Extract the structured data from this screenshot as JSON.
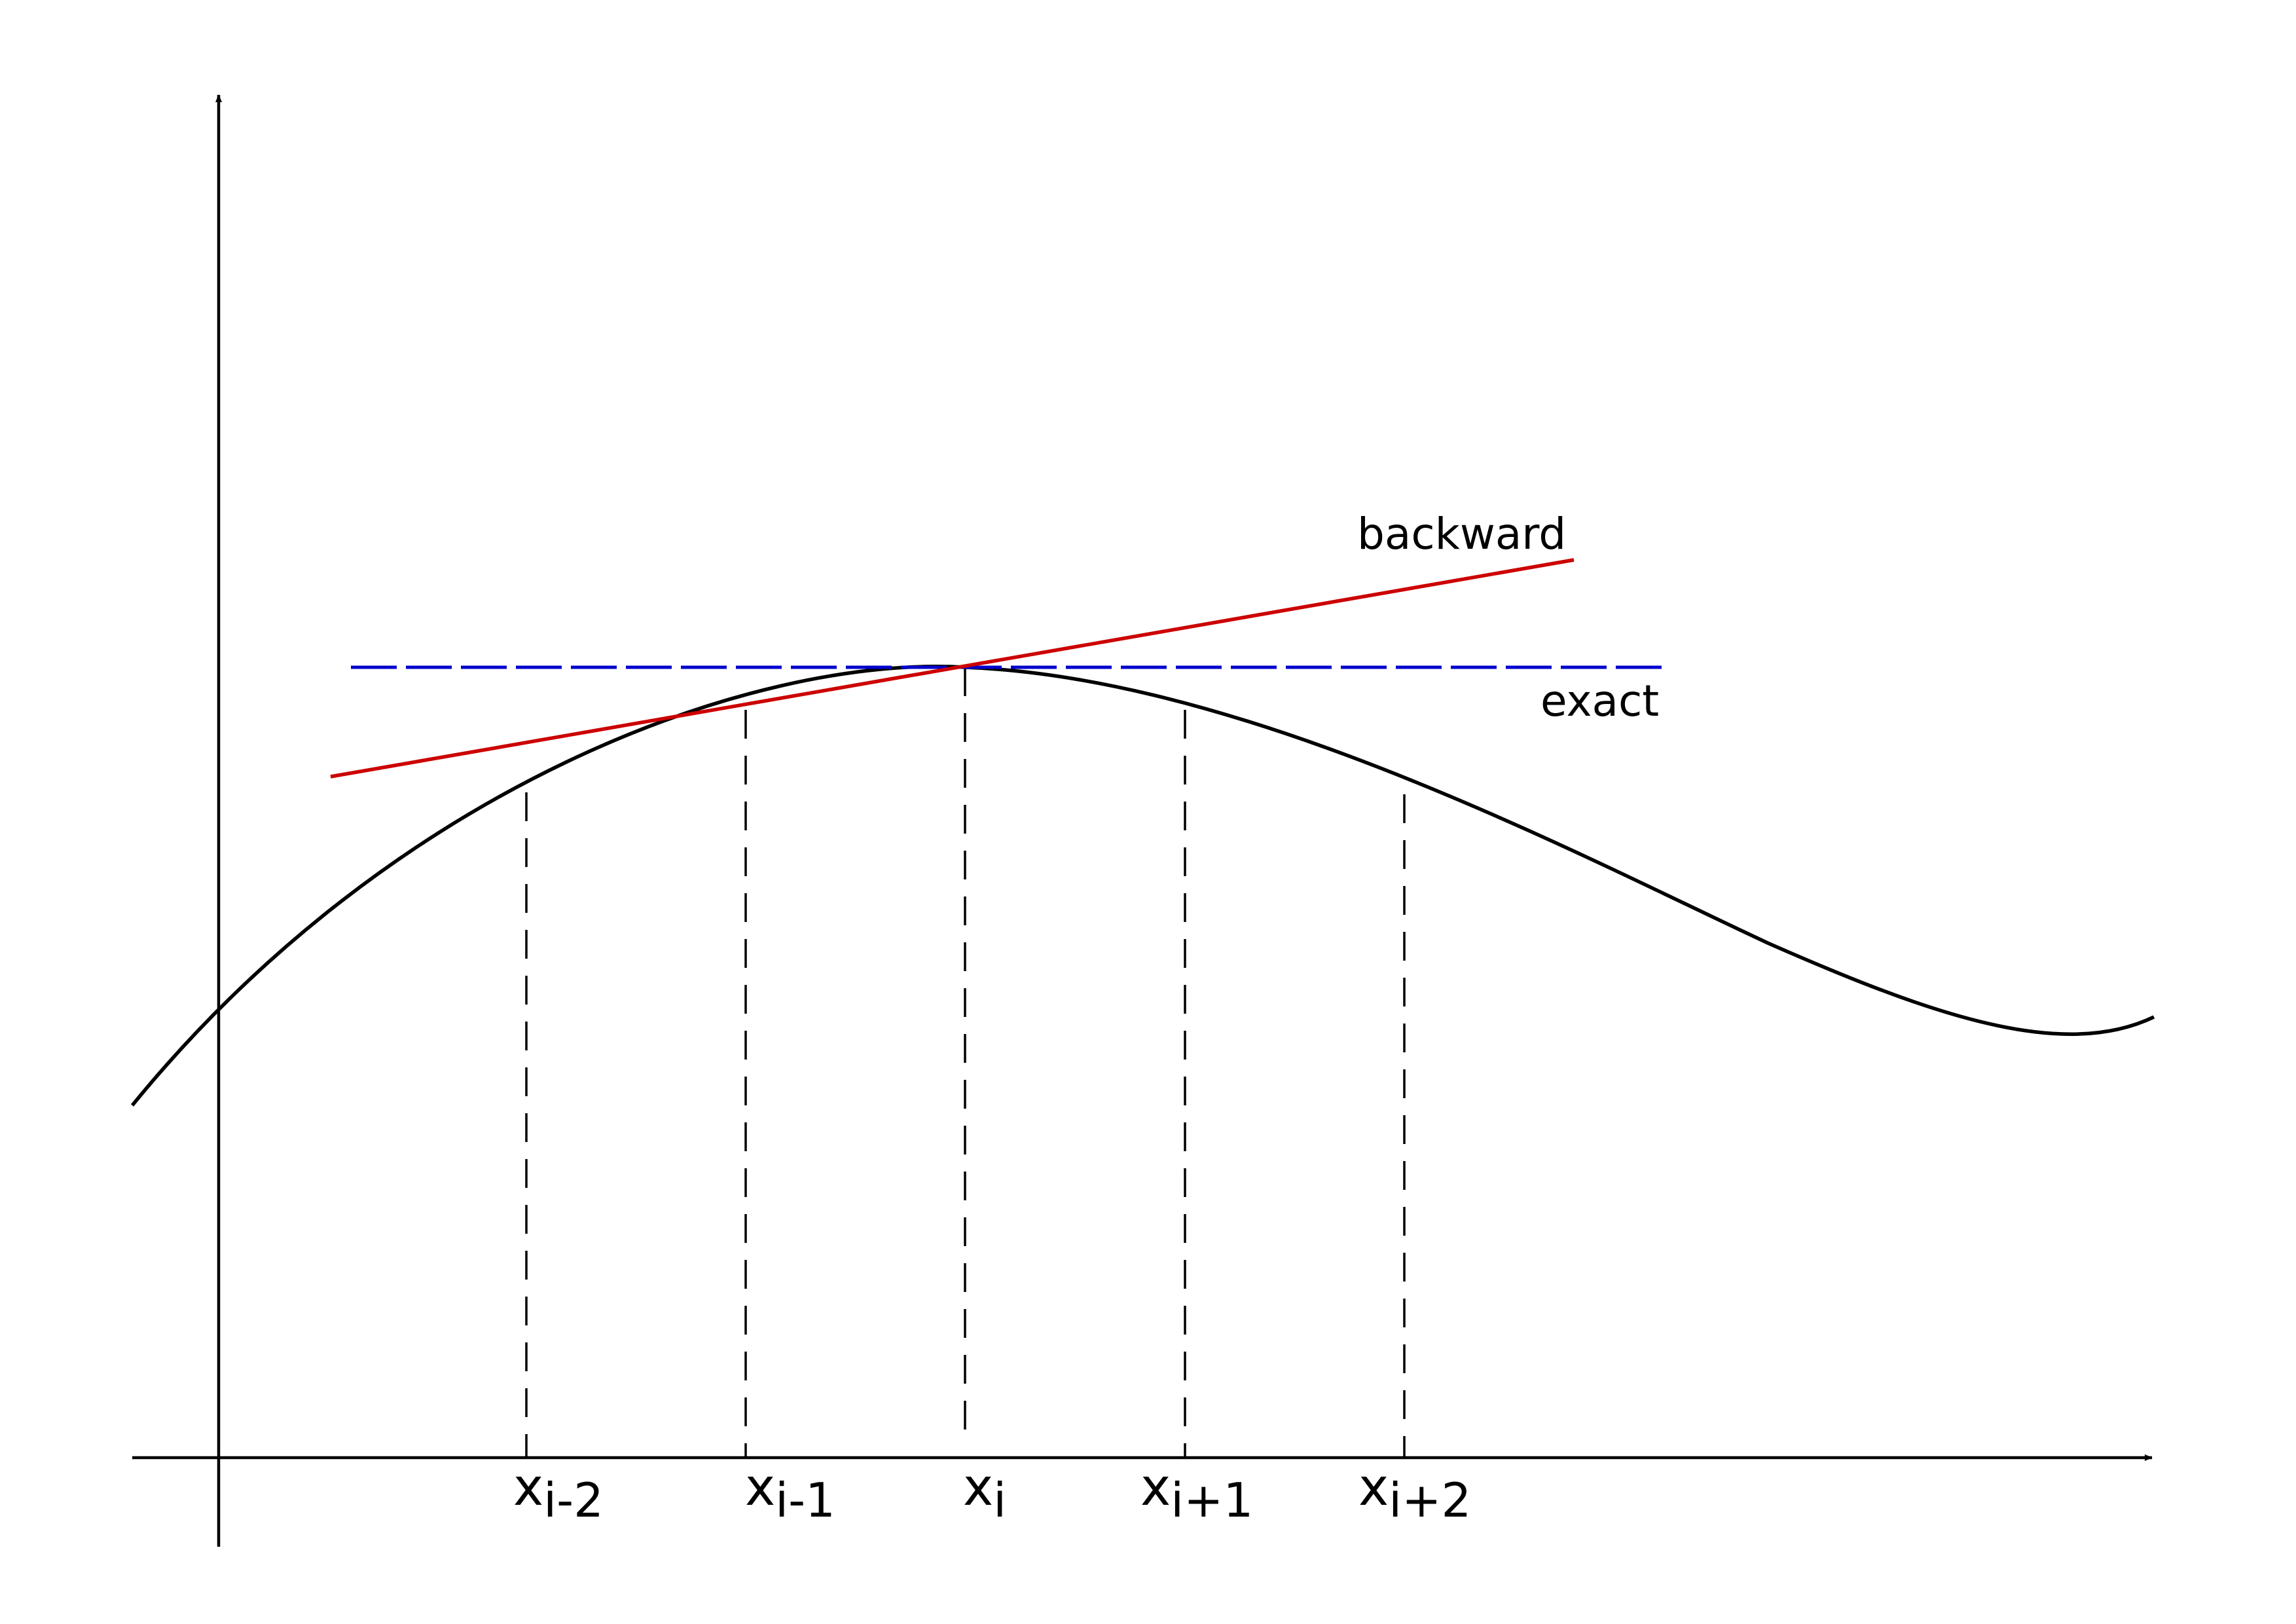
{
  "labels": {
    "backward": "backward",
    "exact": "exact"
  },
  "ticks": [
    {
      "main": "x",
      "sub": "i-2"
    },
    {
      "main": "x",
      "sub": "i-1"
    },
    {
      "main": "x",
      "sub": "i"
    },
    {
      "main": "x",
      "sub": "i+1"
    },
    {
      "main": "x",
      "sub": "i+2"
    }
  ],
  "colors": {
    "axes": "#000000",
    "curve": "#000000",
    "guides": "#000000",
    "backward": "#cc0000",
    "exact": "#0000cc",
    "background": "#ffffff"
  }
}
